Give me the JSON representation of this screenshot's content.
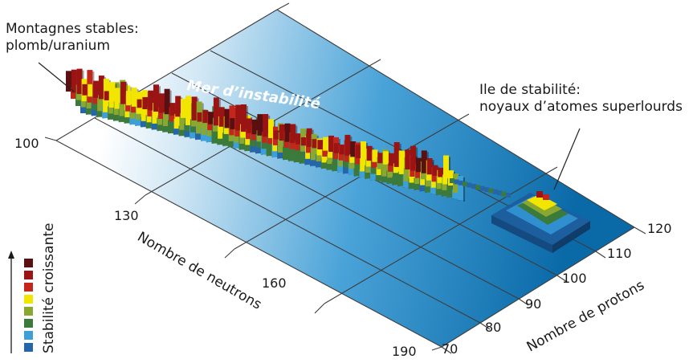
{
  "annotations": {
    "mountains": [
      "Montagnes stables:",
      "plomb/uranium"
    ],
    "sea": "Mer d’instabilité",
    "island": [
      "Ile de stabilité:",
      "noyaux d’atomes superlourds"
    ]
  },
  "axes": {
    "neutrons": {
      "label": "Nombre de neutrons",
      "ticks": [
        "100",
        "130",
        "160",
        "190"
      ]
    },
    "protons": {
      "label": "Nombre de protons",
      "ticks": [
        "70",
        "80",
        "90",
        "100",
        "110",
        "120"
      ]
    }
  },
  "legend": {
    "label": "Stabilité croissante",
    "colors": [
      "#5a1010",
      "#9b1414",
      "#c4261c",
      "#f2e600",
      "#8aa830",
      "#3c7a3c",
      "#3d9fd8",
      "#2466a8"
    ]
  },
  "colors": {
    "sea_light": "#e3f1fa",
    "sea_dark": "#0a6aa8",
    "grid": "#4a4a4a"
  }
}
